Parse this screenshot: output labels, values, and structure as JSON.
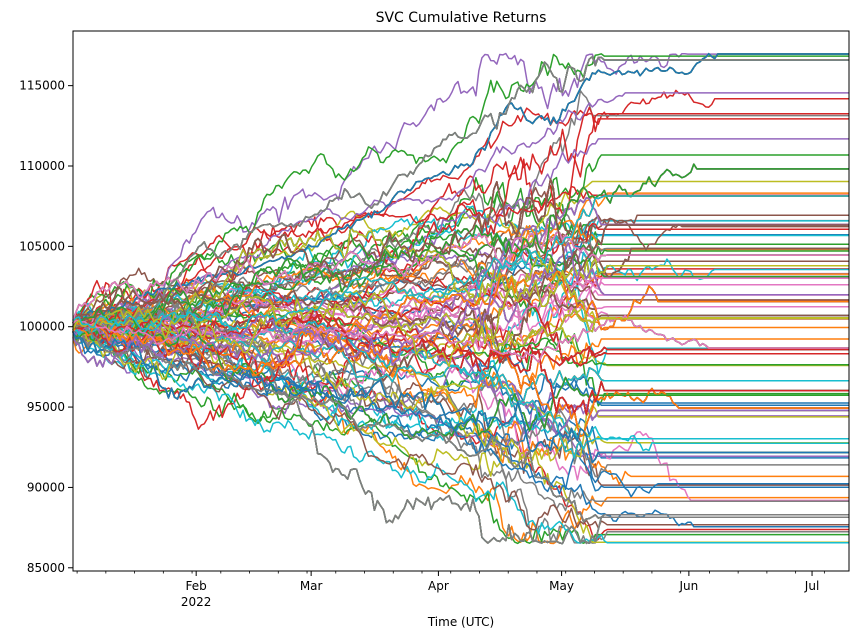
{
  "chart_data": {
    "type": "line",
    "title": "SVC Cumulative Returns",
    "xlabel": "Time (UTC)",
    "ylabel": "",
    "x_axis": {
      "type": "date",
      "range": [
        "2022-01-02",
        "2022-07-10"
      ],
      "major_ticks": [
        {
          "date": "2022-02-01",
          "label": "Feb",
          "sublabel": "2022"
        },
        {
          "date": "2022-03-01",
          "label": "Mar",
          "sublabel": ""
        },
        {
          "date": "2022-04-01",
          "label": "Apr",
          "sublabel": ""
        },
        {
          "date": "2022-05-01",
          "label": "May",
          "sublabel": ""
        },
        {
          "date": "2022-06-01",
          "label": "Jun",
          "sublabel": ""
        },
        {
          "date": "2022-07-01",
          "label": "Jul",
          "sublabel": ""
        }
      ]
    },
    "y_axis": {
      "range": [
        84800,
        118400
      ],
      "ticks": [
        {
          "value": 85000,
          "label": "85000"
        },
        {
          "value": 90000,
          "label": "90000"
        },
        {
          "value": 95000,
          "label": "95000"
        },
        {
          "value": 100000,
          "label": "100000"
        },
        {
          "value": 105000,
          "label": "105000"
        },
        {
          "value": 110000,
          "label": "110000"
        },
        {
          "value": 115000,
          "label": "115000"
        }
      ]
    },
    "grid": false,
    "legend": "none",
    "start_value": 100000,
    "end_value_range": [
      86500,
      117000
    ],
    "series_count_approx": 300,
    "colors": [
      "#1f77b4",
      "#ff7f0e",
      "#2ca02c",
      "#d62728",
      "#9467bd",
      "#8c564b",
      "#e377c2",
      "#7f7f7f",
      "#bcbd22",
      "#17becf"
    ]
  }
}
